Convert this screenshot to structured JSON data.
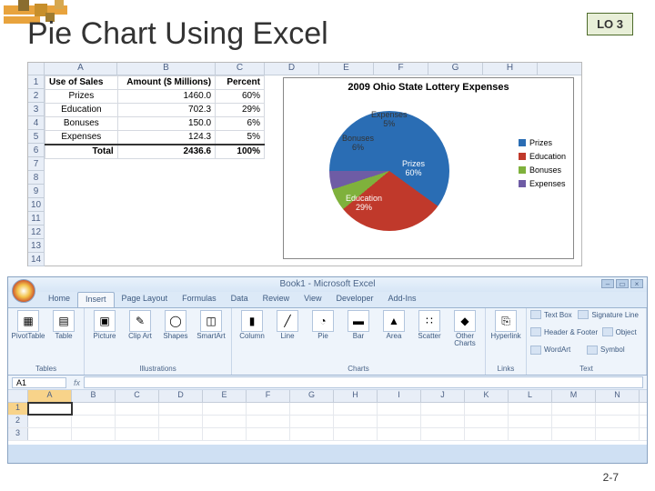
{
  "slide": {
    "title": "Pie Chart Using Excel",
    "lo_badge": "LO 3",
    "page_number": "2-7"
  },
  "data_table": {
    "columns": [
      "Use of Sales",
      "Amount ($ Millions)",
      "Percent"
    ],
    "col_letters": [
      "A",
      "B",
      "C",
      "D",
      "E",
      "F",
      "G",
      "H"
    ],
    "row_numbers": [
      "1",
      "2",
      "3",
      "4",
      "5",
      "6",
      "7",
      "8",
      "9",
      "10",
      "11",
      "12",
      "13",
      "14"
    ],
    "rows": [
      {
        "label": "Prizes",
        "amount": "1460.0",
        "percent": "60%"
      },
      {
        "label": "Education",
        "amount": "702.3",
        "percent": "29%"
      },
      {
        "label": "Bonuses",
        "amount": "150.0",
        "percent": "6%"
      },
      {
        "label": "Expenses",
        "amount": "124.3",
        "percent": "5%"
      }
    ],
    "total": {
      "label": "Total",
      "amount": "2436.6",
      "percent": "100%"
    }
  },
  "pie_chart": {
    "title": "2009 Ohio State Lottery Expenses",
    "type": "pie",
    "slices": [
      {
        "label": "Prizes",
        "percent": 60,
        "color": "#2a6db4",
        "text": "Prizes\n60%"
      },
      {
        "label": "Education",
        "percent": 29,
        "color": "#c0392b",
        "text": "Education\n29%"
      },
      {
        "label": "Bonuses",
        "percent": 6,
        "color": "#7fb13c",
        "text": "Bonuses\n6%"
      },
      {
        "label": "Expenses",
        "percent": 5,
        "color": "#6e5ca5",
        "text": "Expenses\n5%"
      }
    ],
    "legend_title": ""
  },
  "ribbon": {
    "window_title": "Book1 - Microsoft Excel",
    "tabs": [
      "Home",
      "Insert",
      "Page Layout",
      "Formulas",
      "Data",
      "Review",
      "View",
      "Developer",
      "Add-Ins"
    ],
    "active_tab": "Insert",
    "groups": {
      "tables": {
        "label": "Tables",
        "items": [
          "PivotTable",
          "Table"
        ]
      },
      "illustrations": {
        "label": "Illustrations",
        "items": [
          "Picture",
          "Clip Art",
          "Shapes",
          "SmartArt"
        ]
      },
      "charts": {
        "label": "Charts",
        "items": [
          "Column",
          "Line",
          "Pie",
          "Bar",
          "Area",
          "Scatter",
          "Other Charts"
        ]
      },
      "links": {
        "label": "Links",
        "items": [
          "Hyperlink"
        ]
      },
      "text": {
        "label": "Text",
        "items": [
          "Text Box",
          "Header & Footer",
          "WordArt",
          "Signature Line",
          "Object",
          "Symbol"
        ]
      }
    },
    "namebox": "A1",
    "sheet_cols": [
      "A",
      "B",
      "C",
      "D",
      "E",
      "F",
      "G",
      "H",
      "I",
      "J",
      "K",
      "L",
      "M",
      "N"
    ],
    "sheet_rows": [
      "1",
      "2",
      "3"
    ]
  },
  "icons": {
    "pivot": "▦",
    "table": "▤",
    "picture": "▣",
    "clip": "✎",
    "shapes": "◯",
    "smartart": "◫",
    "column": "▮",
    "line": "╱",
    "pie": "◔",
    "bar": "▬",
    "area": "▲",
    "scatter": "∷",
    "other": "◆",
    "link": "⎘"
  }
}
